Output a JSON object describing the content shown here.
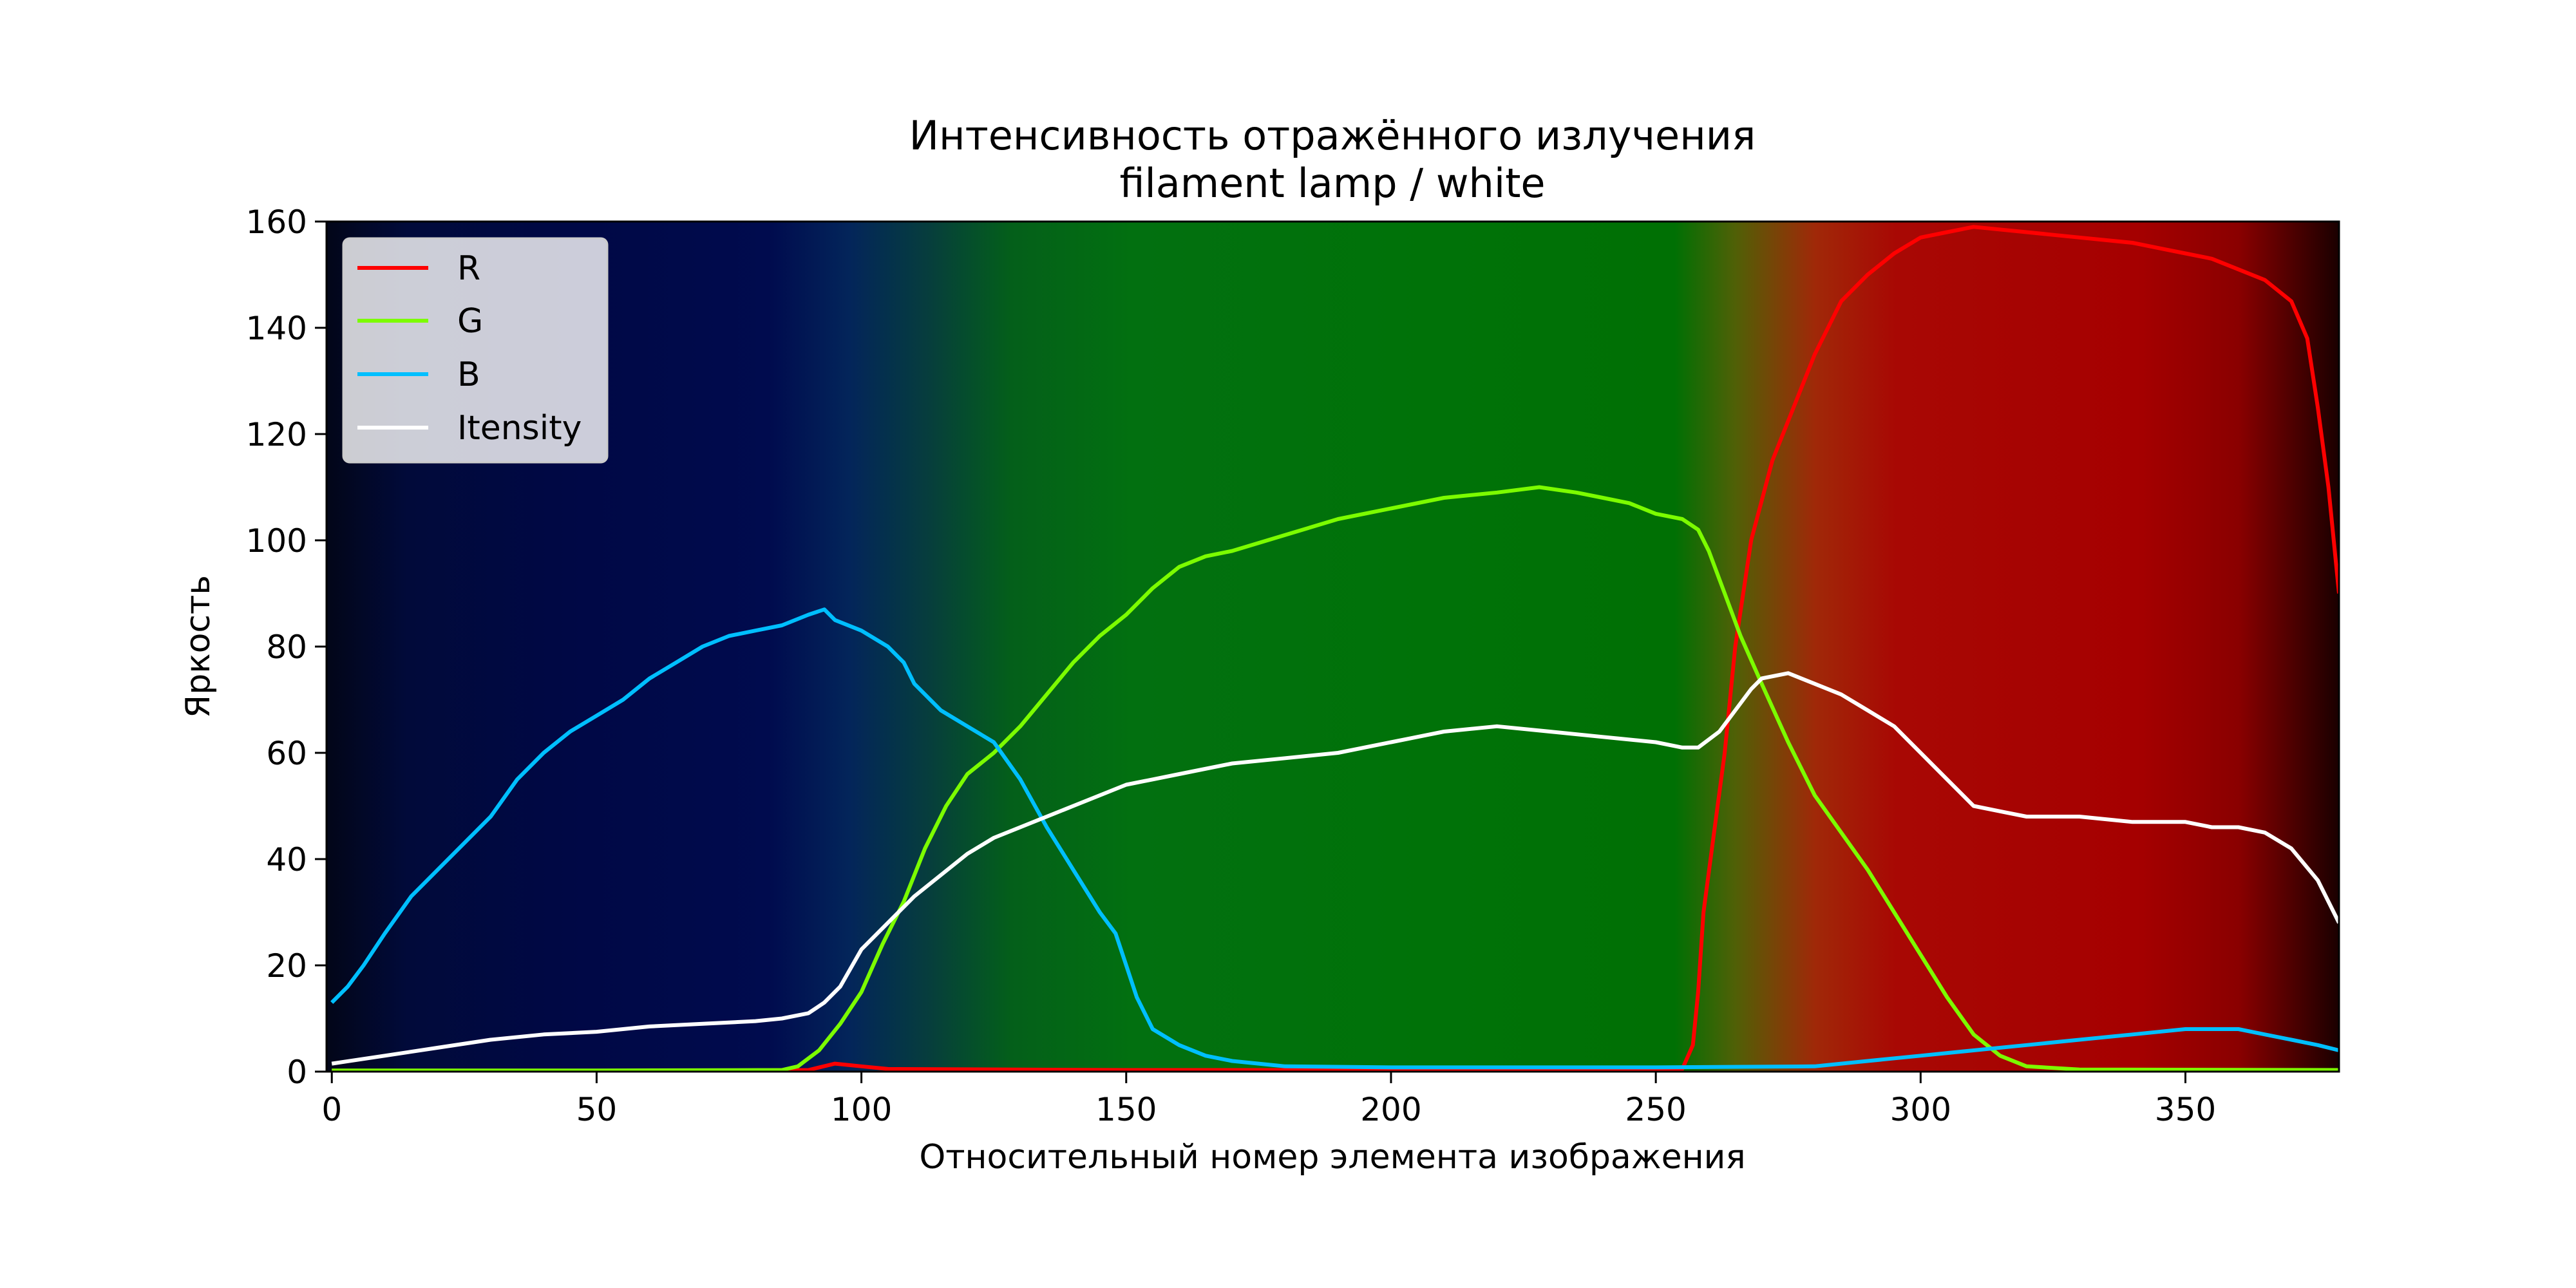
{
  "chart_data": {
    "type": "line",
    "title": "Интенсивность отражённого излучения",
    "subtitle": "filament lamp / white",
    "xlabel": "Относительный номер элемента изображения",
    "ylabel": "Яркость",
    "xlim": [
      -1,
      379
    ],
    "ylim": [
      0,
      160
    ],
    "xticks": [
      0,
      50,
      100,
      150,
      200,
      250,
      300,
      350
    ],
    "yticks": [
      0,
      20,
      40,
      60,
      80,
      100,
      120,
      140,
      160
    ],
    "grid": false,
    "legend_position": "top-left",
    "background": "spectrum gradient: dark blue → green → red",
    "series": [
      {
        "name": "R",
        "color": "#ff0000",
        "points": [
          [
            0,
            0
          ],
          [
            50,
            0
          ],
          [
            90,
            0.3
          ],
          [
            95,
            1.5
          ],
          [
            100,
            1
          ],
          [
            105,
            0.5
          ],
          [
            150,
            0.3
          ],
          [
            200,
            0.3
          ],
          [
            250,
            0.3
          ],
          [
            255,
            0.5
          ],
          [
            257,
            5
          ],
          [
            258,
            15
          ],
          [
            259,
            30
          ],
          [
            261,
            45
          ],
          [
            263,
            60
          ],
          [
            265,
            80
          ],
          [
            268,
            100
          ],
          [
            272,
            115
          ],
          [
            276,
            125
          ],
          [
            280,
            135
          ],
          [
            285,
            145
          ],
          [
            290,
            150
          ],
          [
            295,
            154
          ],
          [
            300,
            157
          ],
          [
            305,
            158
          ],
          [
            310,
            159
          ],
          [
            320,
            158
          ],
          [
            330,
            157
          ],
          [
            340,
            156
          ],
          [
            345,
            155
          ],
          [
            350,
            154
          ],
          [
            355,
            153
          ],
          [
            360,
            151
          ],
          [
            365,
            149
          ],
          [
            370,
            145
          ],
          [
            373,
            138
          ],
          [
            375,
            125
          ],
          [
            377,
            110
          ],
          [
            378,
            100
          ],
          [
            379,
            90
          ]
        ]
      },
      {
        "name": "G",
        "color": "#7cfc00",
        "points": [
          [
            0,
            0.2
          ],
          [
            50,
            0.2
          ],
          [
            85,
            0.3
          ],
          [
            88,
            1
          ],
          [
            92,
            4
          ],
          [
            96,
            9
          ],
          [
            100,
            15
          ],
          [
            104,
            24
          ],
          [
            108,
            32
          ],
          [
            112,
            42
          ],
          [
            116,
            50
          ],
          [
            120,
            56
          ],
          [
            125,
            60
          ],
          [
            130,
            65
          ],
          [
            135,
            71
          ],
          [
            140,
            77
          ],
          [
            145,
            82
          ],
          [
            150,
            86
          ],
          [
            155,
            91
          ],
          [
            160,
            95
          ],
          [
            165,
            97
          ],
          [
            170,
            98
          ],
          [
            180,
            101
          ],
          [
            190,
            104
          ],
          [
            200,
            106
          ],
          [
            210,
            108
          ],
          [
            220,
            109
          ],
          [
            228,
            110
          ],
          [
            235,
            109
          ],
          [
            240,
            108
          ],
          [
            245,
            107
          ],
          [
            250,
            105
          ],
          [
            255,
            104
          ],
          [
            258,
            102
          ],
          [
            260,
            98
          ],
          [
            263,
            90
          ],
          [
            266,
            82
          ],
          [
            270,
            73
          ],
          [
            275,
            62
          ],
          [
            280,
            52
          ],
          [
            285,
            45
          ],
          [
            290,
            38
          ],
          [
            295,
            30
          ],
          [
            300,
            22
          ],
          [
            305,
            14
          ],
          [
            310,
            7
          ],
          [
            315,
            3
          ],
          [
            320,
            1
          ],
          [
            330,
            0.4
          ],
          [
            379,
            0.3
          ]
        ]
      },
      {
        "name": "B",
        "color": "#00bfff",
        "points": [
          [
            0,
            13
          ],
          [
            3,
            16
          ],
          [
            6,
            20
          ],
          [
            10,
            26
          ],
          [
            15,
            33
          ],
          [
            20,
            38
          ],
          [
            25,
            43
          ],
          [
            30,
            48
          ],
          [
            35,
            55
          ],
          [
            40,
            60
          ],
          [
            45,
            64
          ],
          [
            50,
            67
          ],
          [
            55,
            70
          ],
          [
            60,
            74
          ],
          [
            65,
            77
          ],
          [
            70,
            80
          ],
          [
            75,
            82
          ],
          [
            80,
            83
          ],
          [
            85,
            84
          ],
          [
            90,
            86
          ],
          [
            93,
            87
          ],
          [
            95,
            85
          ],
          [
            100,
            83
          ],
          [
            105,
            80
          ],
          [
            108,
            77
          ],
          [
            110,
            73
          ],
          [
            115,
            68
          ],
          [
            120,
            65
          ],
          [
            125,
            62
          ],
          [
            130,
            55
          ],
          [
            135,
            46
          ],
          [
            140,
            38
          ],
          [
            145,
            30
          ],
          [
            148,
            26
          ],
          [
            150,
            20
          ],
          [
            152,
            14
          ],
          [
            155,
            8
          ],
          [
            160,
            5
          ],
          [
            165,
            3
          ],
          [
            170,
            2
          ],
          [
            180,
            1
          ],
          [
            200,
            0.8
          ],
          [
            250,
            0.8
          ],
          [
            280,
            1
          ],
          [
            290,
            2
          ],
          [
            300,
            3
          ],
          [
            310,
            4
          ],
          [
            320,
            5
          ],
          [
            330,
            6
          ],
          [
            340,
            7
          ],
          [
            350,
            8
          ],
          [
            360,
            8
          ],
          [
            365,
            7
          ],
          [
            370,
            6
          ],
          [
            375,
            5
          ],
          [
            379,
            4
          ]
        ]
      },
      {
        "name": "Itensity",
        "color": "#ffffff",
        "points": [
          [
            0,
            1.5
          ],
          [
            10,
            3
          ],
          [
            20,
            4.5
          ],
          [
            30,
            6
          ],
          [
            40,
            7
          ],
          [
            50,
            7.5
          ],
          [
            60,
            8.5
          ],
          [
            70,
            9
          ],
          [
            80,
            9.5
          ],
          [
            85,
            10
          ],
          [
            90,
            11
          ],
          [
            93,
            13
          ],
          [
            96,
            16
          ],
          [
            100,
            23
          ],
          [
            105,
            28
          ],
          [
            110,
            33
          ],
          [
            115,
            37
          ],
          [
            120,
            41
          ],
          [
            125,
            44
          ],
          [
            130,
            46
          ],
          [
            135,
            48
          ],
          [
            140,
            50
          ],
          [
            145,
            52
          ],
          [
            150,
            54
          ],
          [
            155,
            55
          ],
          [
            160,
            56
          ],
          [
            170,
            58
          ],
          [
            180,
            59
          ],
          [
            190,
            60
          ],
          [
            200,
            62
          ],
          [
            210,
            64
          ],
          [
            220,
            65
          ],
          [
            230,
            64
          ],
          [
            240,
            63
          ],
          [
            250,
            62
          ],
          [
            255,
            61
          ],
          [
            258,
            61
          ],
          [
            262,
            64
          ],
          [
            265,
            68
          ],
          [
            268,
            72
          ],
          [
            270,
            74
          ],
          [
            275,
            75
          ],
          [
            280,
            73
          ],
          [
            285,
            71
          ],
          [
            290,
            68
          ],
          [
            295,
            65
          ],
          [
            300,
            60
          ],
          [
            305,
            55
          ],
          [
            310,
            50
          ],
          [
            315,
            49
          ],
          [
            320,
            48
          ],
          [
            330,
            48
          ],
          [
            340,
            47
          ],
          [
            350,
            47
          ],
          [
            355,
            46
          ],
          [
            360,
            46
          ],
          [
            365,
            45
          ],
          [
            370,
            42
          ],
          [
            375,
            36
          ],
          [
            378,
            30
          ],
          [
            379,
            28
          ]
        ]
      }
    ]
  }
}
